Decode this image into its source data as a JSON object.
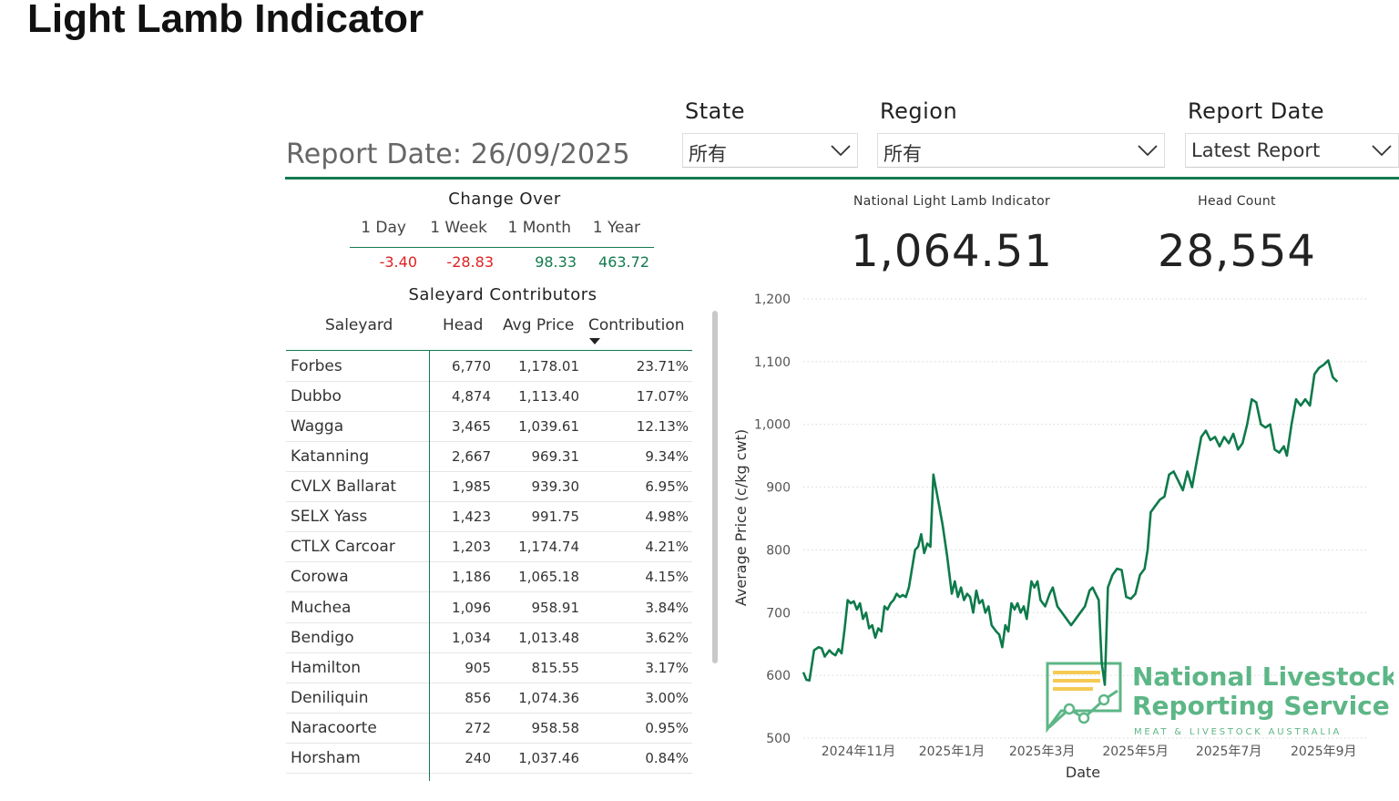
{
  "title": "Light Lamb Indicator",
  "report_date_text": "Report Date: 26/09/2025",
  "filters": {
    "state": {
      "label": "State",
      "value": "所有"
    },
    "region": {
      "label": "Region",
      "value": "所有"
    },
    "report_date": {
      "label": "Report Date",
      "value": "Latest Report"
    }
  },
  "change_over": {
    "title": "Change Over",
    "headers": [
      "1 Day",
      "1 Week",
      "1 Month",
      "1 Year"
    ],
    "values": [
      {
        "text": "-3.40",
        "color": "#e02020"
      },
      {
        "text": "-28.83",
        "color": "#e02020"
      },
      {
        "text": "98.33",
        "color": "#127a4f"
      },
      {
        "text": "463.72",
        "color": "#127a4f"
      }
    ]
  },
  "saleyard_table": {
    "title": "Saleyard Contributors",
    "headers": [
      "Saleyard",
      "Head",
      "Avg Price",
      "Contribution"
    ],
    "rows": [
      [
        "Forbes",
        "6,770",
        "1,178.01",
        "23.71%"
      ],
      [
        "Dubbo",
        "4,874",
        "1,113.40",
        "17.07%"
      ],
      [
        "Wagga",
        "3,465",
        "1,039.61",
        "12.13%"
      ],
      [
        "Katanning",
        "2,667",
        "969.31",
        "9.34%"
      ],
      [
        "CVLX Ballarat",
        "1,985",
        "939.30",
        "6.95%"
      ],
      [
        "SELX Yass",
        "1,423",
        "991.75",
        "4.98%"
      ],
      [
        "CTLX Carcoar",
        "1,203",
        "1,174.74",
        "4.21%"
      ],
      [
        "Corowa",
        "1,186",
        "1,065.18",
        "4.15%"
      ],
      [
        "Muchea",
        "1,096",
        "958.91",
        "3.84%"
      ],
      [
        "Bendigo",
        "1,034",
        "1,013.48",
        "3.62%"
      ],
      [
        "Hamilton",
        "905",
        "815.55",
        "3.17%"
      ],
      [
        "Deniliquin",
        "856",
        "1,074.36",
        "3.00%"
      ],
      [
        "Naracoorte",
        "272",
        "958.58",
        "0.95%"
      ],
      [
        "Horsham",
        "240",
        "1,037.46",
        "0.84%"
      ]
    ]
  },
  "kpis": {
    "indicator": {
      "label": "National Light Lamb Indicator",
      "value": "1,064.51"
    },
    "head_count": {
      "label": "Head Count",
      "value": "28,554"
    }
  },
  "logo": {
    "line1": "National Livestock",
    "line2": "Reporting Service",
    "tagline": "MEAT & LIVESTOCK AUSTRALIA"
  },
  "colors": {
    "accent": "#127a4f",
    "negative": "#e02020",
    "line": "#0d7a4a",
    "logo_green": "#4caf7a",
    "logo_yellow": "#f5c542"
  },
  "chart_data": {
    "type": "line",
    "title": "",
    "xlabel": "Date",
    "ylabel": "Average Price (c/kg cwt)",
    "ylim": [
      500,
      1200
    ],
    "yticks": [
      500,
      600,
      700,
      800,
      900,
      1000,
      1100,
      1200
    ],
    "yticklabels": [
      "500",
      "600",
      "700",
      "800",
      "900",
      "1,000",
      "1,100",
      "1,200"
    ],
    "xlim": [
      "2024-09-26",
      "2025-09-30"
    ],
    "xticks": [
      "2024-11-01",
      "2025-01-01",
      "2025-03-01",
      "2025-05-01",
      "2025-07-01",
      "2025-09-01"
    ],
    "xticklabels": [
      "2024年11月",
      "2025年1月",
      "2025年3月",
      "2025年5月",
      "2025年7月",
      "2025年9月"
    ],
    "grid": true,
    "series": [
      {
        "values": [
          [
            "2024-09-26",
            605
          ],
          [
            "2024-09-28",
            593
          ],
          [
            "2024-09-30",
            592
          ],
          [
            "2024-10-03",
            640
          ],
          [
            "2024-10-06",
            645
          ],
          [
            "2024-10-08",
            643
          ],
          [
            "2024-10-10",
            630
          ],
          [
            "2024-10-13",
            640
          ],
          [
            "2024-10-15",
            635
          ],
          [
            "2024-10-17",
            632
          ],
          [
            "2024-10-19",
            642
          ],
          [
            "2024-10-21",
            635
          ],
          [
            "2024-10-23",
            675
          ],
          [
            "2024-10-25",
            720
          ],
          [
            "2024-10-27",
            715
          ],
          [
            "2024-10-29",
            718
          ],
          [
            "2024-10-31",
            705
          ],
          [
            "2024-11-02",
            715
          ],
          [
            "2024-11-04",
            690
          ],
          [
            "2024-11-06",
            700
          ],
          [
            "2024-11-08",
            675
          ],
          [
            "2024-11-10",
            680
          ],
          [
            "2024-11-12",
            660
          ],
          [
            "2024-11-14",
            675
          ],
          [
            "2024-11-16",
            670
          ],
          [
            "2024-11-18",
            710
          ],
          [
            "2024-11-20",
            705
          ],
          [
            "2024-11-22",
            715
          ],
          [
            "2024-11-24",
            720
          ],
          [
            "2024-11-26",
            730
          ],
          [
            "2024-11-28",
            725
          ],
          [
            "2024-11-30",
            728
          ],
          [
            "2024-12-02",
            725
          ],
          [
            "2024-12-04",
            740
          ],
          [
            "2024-12-06",
            770
          ],
          [
            "2024-12-08",
            800
          ],
          [
            "2024-12-10",
            805
          ],
          [
            "2024-12-12",
            825
          ],
          [
            "2024-12-14",
            795
          ],
          [
            "2024-12-16",
            810
          ],
          [
            "2024-12-18",
            805
          ],
          [
            "2024-12-20",
            920
          ],
          [
            "2024-12-23",
            880
          ],
          [
            "2024-12-26",
            840
          ],
          [
            "2024-12-29",
            790
          ],
          [
            "2025-01-01",
            730
          ],
          [
            "2025-01-03",
            750
          ],
          [
            "2025-01-05",
            725
          ],
          [
            "2025-01-07",
            740
          ],
          [
            "2025-01-09",
            720
          ],
          [
            "2025-01-11",
            730
          ],
          [
            "2025-01-13",
            725
          ],
          [
            "2025-01-15",
            700
          ],
          [
            "2025-01-17",
            735
          ],
          [
            "2025-01-19",
            715
          ],
          [
            "2025-01-21",
            720
          ],
          [
            "2025-01-23",
            700
          ],
          [
            "2025-01-25",
            710
          ],
          [
            "2025-01-27",
            680
          ],
          [
            "2025-01-30",
            670
          ],
          [
            "2025-02-01",
            665
          ],
          [
            "2025-02-03",
            645
          ],
          [
            "2025-02-05",
            680
          ],
          [
            "2025-02-07",
            670
          ],
          [
            "2025-02-09",
            715
          ],
          [
            "2025-02-11",
            705
          ],
          [
            "2025-02-13",
            715
          ],
          [
            "2025-02-15",
            700
          ],
          [
            "2025-02-17",
            710
          ],
          [
            "2025-02-19",
            690
          ],
          [
            "2025-02-22",
            750
          ],
          [
            "2025-02-24",
            740
          ],
          [
            "2025-02-26",
            750
          ],
          [
            "2025-02-28",
            720
          ],
          [
            "2025-03-03",
            710
          ],
          [
            "2025-03-06",
            730
          ],
          [
            "2025-03-08",
            740
          ],
          [
            "2025-03-11",
            710
          ],
          [
            "2025-03-14",
            700
          ],
          [
            "2025-03-17",
            690
          ],
          [
            "2025-03-20",
            680
          ],
          [
            "2025-03-23",
            690
          ],
          [
            "2025-03-26",
            700
          ],
          [
            "2025-03-29",
            710
          ],
          [
            "2025-04-01",
            735
          ],
          [
            "2025-04-03",
            740
          ],
          [
            "2025-04-05",
            730
          ],
          [
            "2025-04-07",
            720
          ],
          [
            "2025-04-09",
            620
          ],
          [
            "2025-04-11",
            585
          ],
          [
            "2025-04-13",
            740
          ],
          [
            "2025-04-16",
            760
          ],
          [
            "2025-04-19",
            770
          ],
          [
            "2025-04-22",
            768
          ],
          [
            "2025-04-25",
            725
          ],
          [
            "2025-04-28",
            722
          ],
          [
            "2025-05-01",
            730
          ],
          [
            "2025-05-04",
            760
          ],
          [
            "2025-05-07",
            770
          ],
          [
            "2025-05-09",
            800
          ],
          [
            "2025-05-11",
            860
          ],
          [
            "2025-05-14",
            870
          ],
          [
            "2025-05-17",
            880
          ],
          [
            "2025-05-20",
            885
          ],
          [
            "2025-05-23",
            920
          ],
          [
            "2025-05-26",
            925
          ],
          [
            "2025-05-29",
            910
          ],
          [
            "2025-06-01",
            895
          ],
          [
            "2025-06-04",
            925
          ],
          [
            "2025-06-07",
            900
          ],
          [
            "2025-06-10",
            940
          ],
          [
            "2025-06-13",
            980
          ],
          [
            "2025-06-16",
            990
          ],
          [
            "2025-06-19",
            975
          ],
          [
            "2025-06-22",
            980
          ],
          [
            "2025-06-25",
            965
          ],
          [
            "2025-06-28",
            980
          ],
          [
            "2025-07-01",
            970
          ],
          [
            "2025-07-04",
            985
          ],
          [
            "2025-07-07",
            960
          ],
          [
            "2025-07-10",
            970
          ],
          [
            "2025-07-13",
            1000
          ],
          [
            "2025-07-16",
            1040
          ],
          [
            "2025-07-19",
            1035
          ],
          [
            "2025-07-22",
            1000
          ],
          [
            "2025-07-25",
            995
          ],
          [
            "2025-07-28",
            1000
          ],
          [
            "2025-07-31",
            960
          ],
          [
            "2025-08-03",
            955
          ],
          [
            "2025-08-06",
            965
          ],
          [
            "2025-08-08",
            950
          ],
          [
            "2025-08-11",
            1000
          ],
          [
            "2025-08-14",
            1040
          ],
          [
            "2025-08-17",
            1030
          ],
          [
            "2025-08-20",
            1040
          ],
          [
            "2025-08-23",
            1030
          ],
          [
            "2025-08-26",
            1080
          ],
          [
            "2025-08-29",
            1090
          ],
          [
            "2025-09-01",
            1095
          ],
          [
            "2025-09-04",
            1102
          ],
          [
            "2025-09-07",
            1075
          ],
          [
            "2025-09-10",
            1068
          ]
        ]
      }
    ]
  }
}
